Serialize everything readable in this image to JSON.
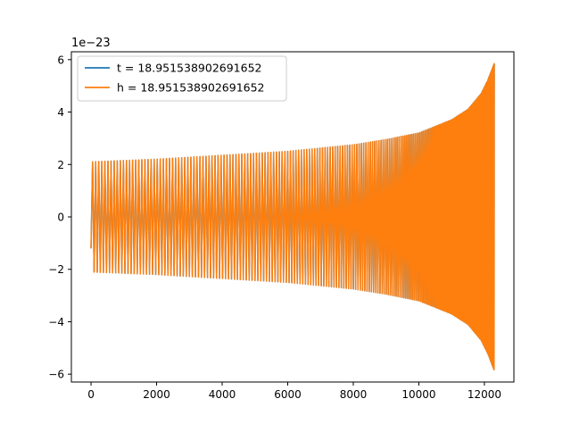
{
  "chart_data": {
    "type": "line",
    "title": "",
    "xlabel": "",
    "ylabel": "",
    "offset_label": "1e−23",
    "xlim": [
      -600,
      12900
    ],
    "ylim": [
      -6.3,
      6.3
    ],
    "x_ticks": [
      0,
      2000,
      4000,
      6000,
      8000,
      10000,
      12000
    ],
    "y_ticks": [
      -6,
      -4,
      -2,
      0,
      2,
      4,
      6
    ],
    "x_tick_labels": [
      "0",
      "2000",
      "4000",
      "6000",
      "8000",
      "10000",
      "12000"
    ],
    "y_tick_labels": [
      "−6",
      "−4",
      "−2",
      "0",
      "2",
      "4",
      "6"
    ],
    "grid": false,
    "legend_position": "upper-left",
    "series": [
      {
        "name": "t = 18.951538902691652",
        "color": "#1f77b4",
        "style": "chirp waveform (hidden beneath h)",
        "x_range": [
          0,
          12300
        ],
        "envelope": [
          [
            0,
            2.1
          ],
          [
            2000,
            2.2
          ],
          [
            4000,
            2.35
          ],
          [
            6000,
            2.5
          ],
          [
            8000,
            2.75
          ],
          [
            9000,
            2.95
          ],
          [
            10000,
            3.2
          ],
          [
            11000,
            3.7
          ],
          [
            11500,
            4.1
          ],
          [
            11900,
            4.7
          ],
          [
            12100,
            5.2
          ],
          [
            12300,
            5.85
          ]
        ]
      },
      {
        "name": "h = 18.951538902691652",
        "color": "#ff7f0e",
        "style": "chirp waveform",
        "x_range": [
          0,
          12300
        ],
        "start_value": -1.2,
        "end_value": 5.8,
        "envelope": [
          [
            0,
            2.1
          ],
          [
            2000,
            2.2
          ],
          [
            4000,
            2.35
          ],
          [
            6000,
            2.5
          ],
          [
            8000,
            2.75
          ],
          [
            9000,
            2.95
          ],
          [
            10000,
            3.2
          ],
          [
            11000,
            3.7
          ],
          [
            11500,
            4.1
          ],
          [
            11900,
            4.7
          ],
          [
            12100,
            5.2
          ],
          [
            12300,
            5.85
          ]
        ]
      }
    ]
  }
}
